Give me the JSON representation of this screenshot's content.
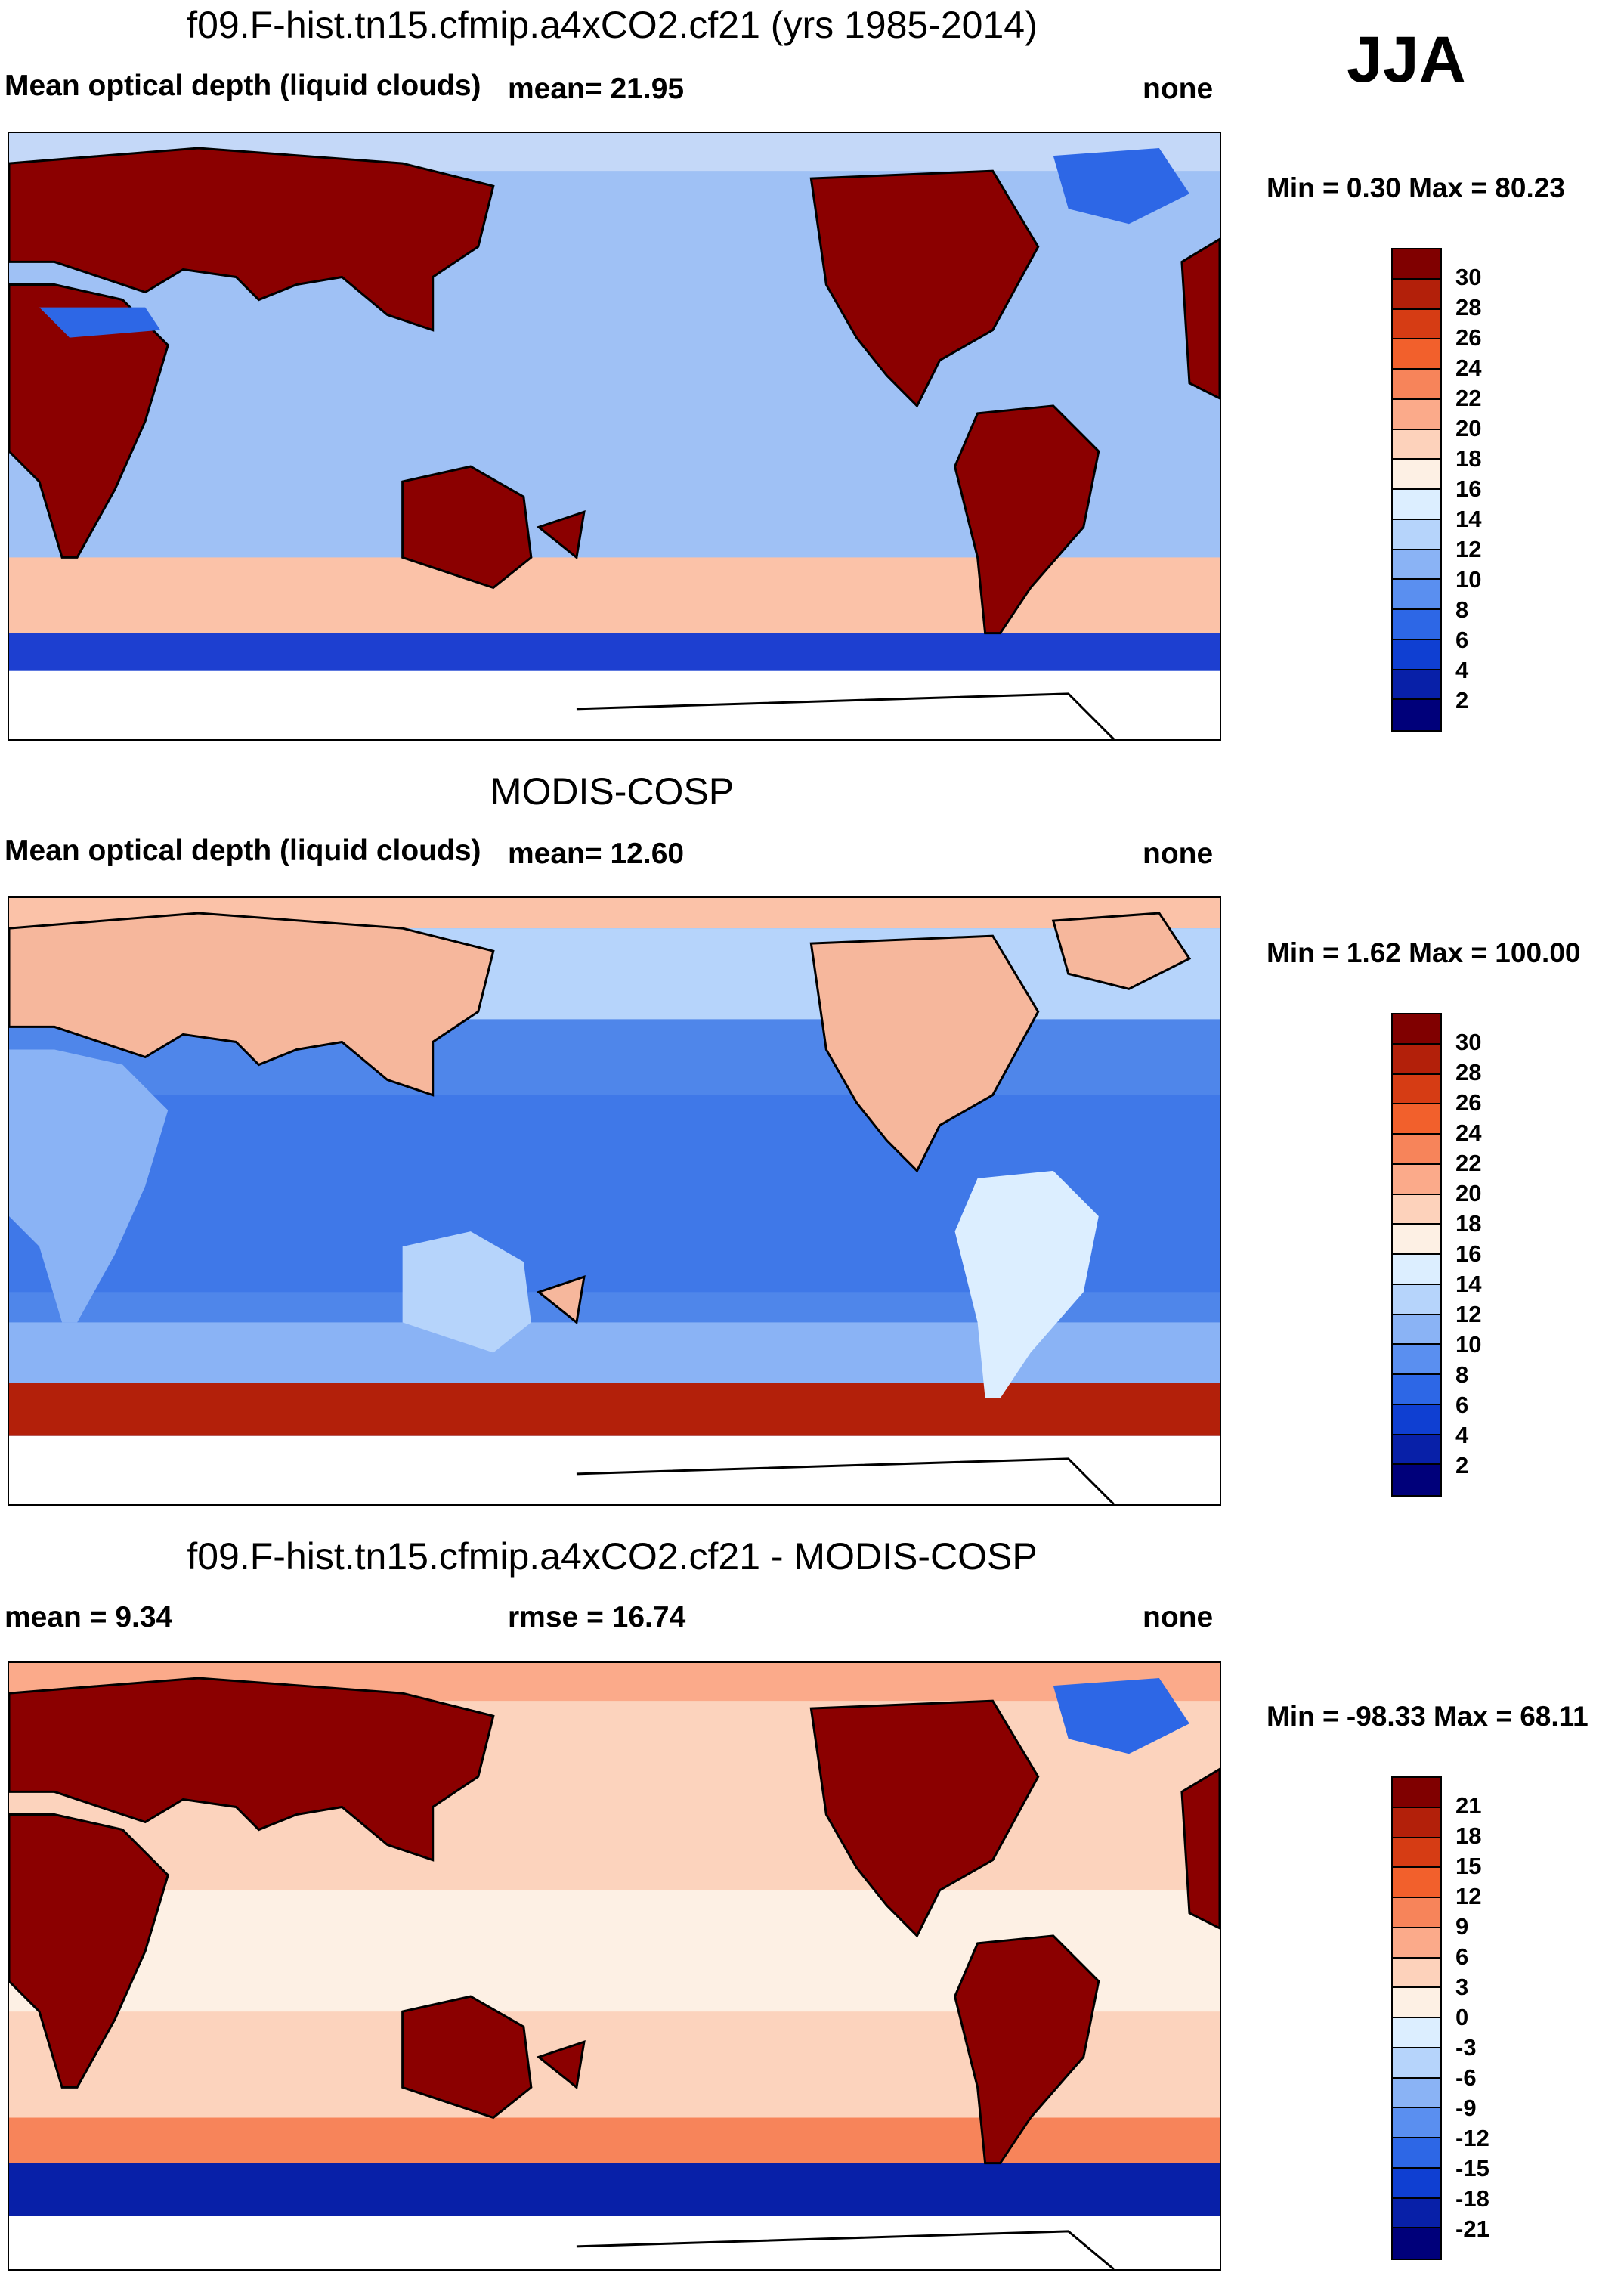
{
  "season": "JJA",
  "panels": [
    {
      "title": "f09.F-hist.tn15.cfmip.a4xCO2.cf21 (yrs 1985-2014)",
      "left_label": "Mean optical depth (liquid clouds)",
      "center_label": "mean=  21.95",
      "right_label": "none",
      "min_max": "Min =   0.30 Max =  80.23",
      "colorbar": {
        "labels": [
          "30",
          "28",
          "26",
          "24",
          "22",
          "20",
          "18",
          "16",
          "14",
          "12",
          "10",
          "8",
          "6",
          "4",
          "2"
        ],
        "colors": [
          "#800000",
          "#b3200a",
          "#d63c14",
          "#f2602c",
          "#f7845a",
          "#fbaa8a",
          "#fdd2bb",
          "#fdf0e4",
          "#dceeff",
          "#b6d4fb",
          "#8ab3f5",
          "#5a8ff0",
          "#2d67e6",
          "#0f3fd2",
          "#0820a8",
          "#00007a"
        ]
      },
      "land_color": "#8b0000",
      "ocean_color": "#9fc1f5"
    },
    {
      "title": "MODIS-COSP",
      "left_label": "Mean optical depth (liquid clouds)",
      "center_label": "mean=  12.60",
      "right_label": "none",
      "min_max": "Min =   1.62 Max = 100.00",
      "colorbar": {
        "labels": [
          "30",
          "28",
          "26",
          "24",
          "22",
          "20",
          "18",
          "16",
          "14",
          "12",
          "10",
          "8",
          "6",
          "4",
          "2"
        ],
        "colors": [
          "#800000",
          "#b3200a",
          "#d63c14",
          "#f2602c",
          "#f7845a",
          "#fbaa8a",
          "#fdd2bb",
          "#fdf0e4",
          "#dceeff",
          "#b6d4fb",
          "#8ab3f5",
          "#5a8ff0",
          "#2d67e6",
          "#0f3fd2",
          "#0820a8",
          "#00007a"
        ]
      },
      "land_color": "#f6b79c",
      "ocean_color": "#4f86ea"
    },
    {
      "title": "f09.F-hist.tn15.cfmip.a4xCO2.cf21 - MODIS-COSP",
      "left_label": "mean =   9.34",
      "center_label": "rmse =  16.74",
      "right_label": "none",
      "min_max": "Min = -98.33 Max =  68.11",
      "colorbar": {
        "labels": [
          "21",
          "18",
          "15",
          "12",
          "9",
          "6",
          "3",
          "0",
          "-3",
          "-6",
          "-9",
          "-12",
          "-15",
          "-18",
          "-21"
        ],
        "colors": [
          "#800000",
          "#b3200a",
          "#d63c14",
          "#f2602c",
          "#f7845a",
          "#fbaa8a",
          "#fdd2bb",
          "#fdf0e4",
          "#dceeff",
          "#b6d4fb",
          "#8ab3f5",
          "#5a8ff0",
          "#2d67e6",
          "#0f3fd2",
          "#0820a8",
          "#00007a"
        ]
      },
      "land_color": "#8b0000",
      "ocean_color": "#fcd3bd"
    }
  ]
}
